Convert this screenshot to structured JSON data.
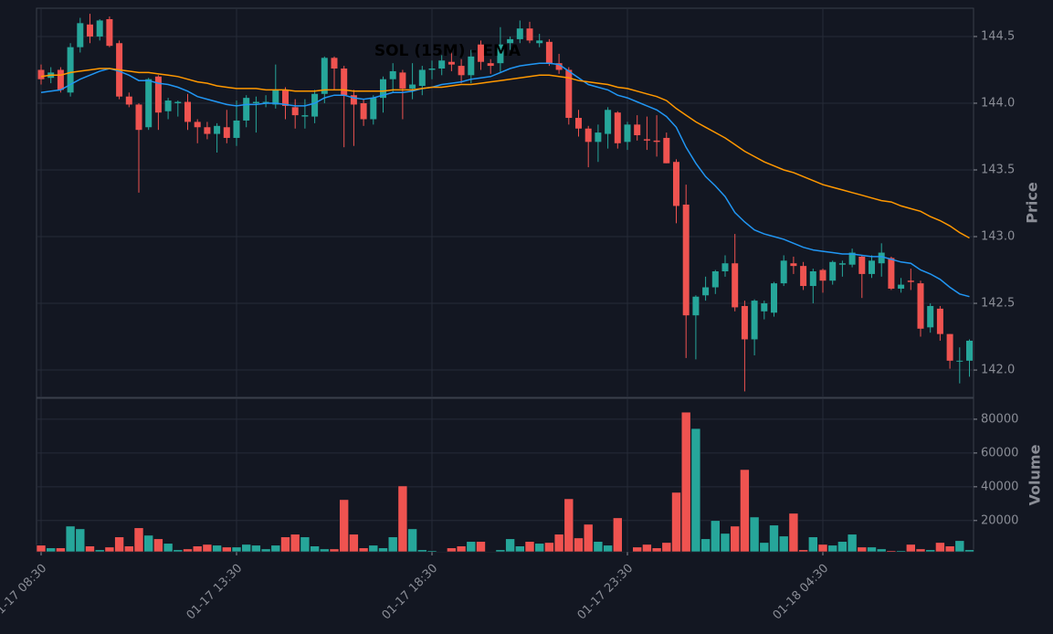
{
  "chart_data": {
    "type": "candlestick",
    "title": "SOL (15M) - EMA",
    "ylabel": "Price",
    "y2label": "Volume",
    "up_color": "#26a69a",
    "down_color": "#ef5350",
    "grid": true,
    "open": [
      144.25,
      144.19,
      144.25,
      144.08,
      144.42,
      144.59,
      144.5,
      144.63,
      144.45,
      144.05,
      143.99,
      143.82,
      144.2,
      143.94,
      144.0,
      144.01,
      143.86,
      143.82,
      143.77,
      143.82,
      143.74,
      143.87,
      144.0,
      144.01,
      143.99,
      144.1,
      143.97,
      143.9,
      143.9,
      144.07,
      144.34,
      144.26,
      144.06,
      144.0,
      143.88,
      144.04,
      144.18,
      144.23,
      144.11,
      144.13,
      144.25,
      144.26,
      144.31,
      144.28,
      144.21,
      144.44,
      144.3,
      144.3,
      144.45,
      144.48,
      144.56,
      144.45,
      144.46,
      144.3,
      144.25,
      143.89,
      143.81,
      143.71,
      143.77,
      143.93,
      143.71,
      143.84,
      143.73,
      143.72,
      143.74,
      143.56,
      143.24,
      142.41,
      142.56,
      142.62,
      142.74,
      142.8,
      142.48,
      142.23,
      142.44,
      142.43,
      142.65,
      142.8,
      142.78,
      142.63,
      142.75,
      142.67,
      142.79,
      142.79,
      142.85,
      142.72,
      142.8,
      142.84,
      142.61,
      142.67,
      142.65,
      142.32,
      142.46,
      142.27,
      142.07,
      142.07
    ],
    "high": [
      144.29,
      144.27,
      144.27,
      144.45,
      144.64,
      144.67,
      144.63,
      144.65,
      144.47,
      144.08,
      144.0,
      144.19,
      144.21,
      144.04,
      144.02,
      144.07,
      143.88,
      143.86,
      143.85,
      143.95,
      144.02,
      144.06,
      144.05,
      144.06,
      144.29,
      144.12,
      144.03,
      144.03,
      144.1,
      144.35,
      144.35,
      144.28,
      144.1,
      144.03,
      144.06,
      144.2,
      144.3,
      144.25,
      144.3,
      144.28,
      144.32,
      144.36,
      144.4,
      144.33,
      144.4,
      144.47,
      144.33,
      144.57,
      144.5,
      144.62,
      144.61,
      144.52,
      144.48,
      144.37,
      144.27,
      143.95,
      143.83,
      143.84,
      143.97,
      143.94,
      143.86,
      143.91,
      143.9,
      143.91,
      143.78,
      143.58,
      143.39,
      142.56,
      142.7,
      142.75,
      142.86,
      143.02,
      142.52,
      142.53,
      142.52,
      142.66,
      142.86,
      142.85,
      142.81,
      142.76,
      142.76,
      142.82,
      142.82,
      142.91,
      142.86,
      142.86,
      142.95,
      142.85,
      142.69,
      142.76,
      142.67,
      142.5,
      142.48,
      142.27,
      142.17,
      142.23
    ],
    "low": [
      144.14,
      144.15,
      144.08,
      144.05,
      144.38,
      144.45,
      144.47,
      144.42,
      144.03,
      143.97,
      143.33,
      143.8,
      143.8,
      143.88,
      143.9,
      143.8,
      143.7,
      143.73,
      143.63,
      143.7,
      143.68,
      143.82,
      143.78,
      143.97,
      143.96,
      143.88,
      143.81,
      143.81,
      143.85,
      144.0,
      144.1,
      143.67,
      143.68,
      143.83,
      143.84,
      143.93,
      144.08,
      143.88,
      144.03,
      144.06,
      144.18,
      144.21,
      144.24,
      144.15,
      144.15,
      144.25,
      144.22,
      144.23,
      144.4,
      144.45,
      144.45,
      144.42,
      144.28,
      144.22,
      143.84,
      143.75,
      143.52,
      143.56,
      143.66,
      143.66,
      143.65,
      143.72,
      143.65,
      143.6,
      143.55,
      143.1,
      142.09,
      142.08,
      142.52,
      142.57,
      142.7,
      142.44,
      141.84,
      142.11,
      142.38,
      142.4,
      142.63,
      142.72,
      142.6,
      142.5,
      142.58,
      142.64,
      142.7,
      142.77,
      142.54,
      142.69,
      142.7,
      142.6,
      142.58,
      142.6,
      142.25,
      142.28,
      142.22,
      142.01,
      141.9,
      141.95
    ],
    "close": [
      144.18,
      144.23,
      144.1,
      144.42,
      144.6,
      144.5,
      144.62,
      144.43,
      144.05,
      143.99,
      143.8,
      144.18,
      143.93,
      144.02,
      144.01,
      143.86,
      143.82,
      143.77,
      143.83,
      143.74,
      143.87,
      144.04,
      144.01,
      144.01,
      144.1,
      143.98,
      143.91,
      143.91,
      144.07,
      144.34,
      144.26,
      144.06,
      143.99,
      143.88,
      144.04,
      144.18,
      144.24,
      144.11,
      144.14,
      144.25,
      144.26,
      144.32,
      144.29,
      144.21,
      144.35,
      144.31,
      144.28,
      144.44,
      144.48,
      144.56,
      144.47,
      144.47,
      144.3,
      144.25,
      143.89,
      143.81,
      143.71,
      143.78,
      143.95,
      143.7,
      143.84,
      143.76,
      143.72,
      143.71,
      143.55,
      143.23,
      142.41,
      142.55,
      142.62,
      142.74,
      142.8,
      142.47,
      142.23,
      142.52,
      142.5,
      142.65,
      142.82,
      142.78,
      142.63,
      142.74,
      142.67,
      142.81,
      142.8,
      142.88,
      142.72,
      142.82,
      142.88,
      142.61,
      142.64,
      142.66,
      142.31,
      142.48,
      142.27,
      142.07,
      142.07,
      142.22
    ],
    "volume": [
      5400,
      3800,
      3800,
      16700,
      15100,
      4900,
      2700,
      4300,
      10300,
      4900,
      15700,
      11300,
      9200,
      6500,
      2700,
      3200,
      4900,
      5900,
      5400,
      4300,
      4300,
      5900,
      5400,
      3200,
      5400,
      10300,
      11900,
      10300,
      4900,
      3200,
      3200,
      32400,
      11900,
      3800,
      5400,
      3800,
      10300,
      40500,
      15100,
      2700,
      2200,
      1800,
      3800,
      4900,
      7600,
      7600,
      1600,
      2700,
      9200,
      4900,
      7600,
      6500,
      7000,
      11900,
      32900,
      9700,
      17800,
      7600,
      5400,
      21600,
      1600,
      4300,
      5900,
      3800,
      7000,
      36700,
      84200,
      74500,
      9200,
      20000,
      12400,
      16700,
      50200,
      22100,
      7000,
      17300,
      10800,
      24300,
      2700,
      10300,
      5900,
      5400,
      7600,
      11900,
      4300,
      4300,
      3200,
      2200,
      2200,
      5900,
      3200,
      2700,
      7000,
      4900,
      8100,
      2700
    ],
    "series": [
      {
        "color": "#2196f3",
        "values": [
          144.08,
          144.09,
          144.1,
          144.14,
          144.18,
          144.21,
          144.24,
          144.26,
          144.24,
          144.21,
          144.17,
          144.17,
          144.15,
          144.14,
          144.12,
          144.09,
          144.05,
          144.03,
          144.01,
          143.99,
          143.98,
          143.99,
          143.99,
          144.0,
          144.0,
          143.99,
          143.98,
          143.98,
          144.0,
          144.04,
          144.06,
          144.06,
          144.04,
          144.03,
          144.04,
          144.06,
          144.08,
          144.08,
          144.09,
          144.11,
          144.12,
          144.14,
          144.15,
          144.16,
          144.18,
          144.19,
          144.2,
          144.23,
          144.26,
          144.28,
          144.29,
          144.3,
          144.3,
          144.29,
          144.24,
          144.19,
          144.14,
          144.12,
          144.1,
          144.06,
          144.04,
          144.01,
          143.98,
          143.95,
          143.9,
          143.82,
          143.67,
          143.55,
          143.45,
          143.38,
          143.3,
          143.18,
          143.11,
          143.05,
          143.02,
          143.0,
          142.98,
          142.95,
          142.92,
          142.9,
          142.89,
          142.88,
          142.87,
          142.87,
          142.86,
          142.85,
          142.85,
          142.83,
          142.81,
          142.8,
          142.75,
          142.72,
          142.68,
          142.62,
          142.57,
          142.55
        ]
      },
      {
        "color": "#ff9800",
        "values": [
          144.2,
          144.21,
          144.21,
          144.23,
          144.24,
          144.25,
          144.26,
          144.26,
          144.25,
          144.24,
          144.23,
          144.23,
          144.22,
          144.21,
          144.2,
          144.18,
          144.16,
          144.15,
          144.13,
          144.12,
          144.11,
          144.11,
          144.11,
          144.1,
          144.1,
          144.1,
          144.09,
          144.09,
          144.09,
          144.1,
          144.1,
          144.1,
          144.09,
          144.09,
          144.09,
          144.09,
          144.1,
          144.1,
          144.1,
          144.11,
          144.12,
          144.12,
          144.13,
          144.14,
          144.14,
          144.15,
          144.16,
          144.17,
          144.18,
          144.19,
          144.2,
          144.21,
          144.21,
          144.2,
          144.19,
          144.17,
          144.16,
          144.15,
          144.14,
          144.12,
          144.11,
          144.09,
          144.07,
          144.05,
          144.02,
          143.96,
          143.91,
          143.86,
          143.82,
          143.78,
          143.74,
          143.69,
          143.64,
          143.6,
          143.56,
          143.53,
          143.5,
          143.48,
          143.45,
          143.42,
          143.39,
          143.37,
          143.35,
          143.33,
          143.31,
          143.29,
          143.27,
          143.26,
          143.23,
          143.21,
          143.19,
          143.15,
          143.12,
          143.08,
          143.03,
          142.99
        ]
      }
    ],
    "xticks": [
      {
        "value": 0,
        "label": "01-17 08:30"
      },
      {
        "value": 20,
        "label": "01-17 13:30"
      },
      {
        "value": 40,
        "label": "01-17 18:30"
      },
      {
        "value": 60,
        "label": "01-17 23:30"
      },
      {
        "value": 80,
        "label": "01-18 04:30"
      }
    ],
    "ylim": [
      141.795,
      144.712
    ],
    "yticks": [
      {
        "value": 142.0,
        "label": "142.0"
      },
      {
        "value": 142.5,
        "label": "142.5"
      },
      {
        "value": 143.0,
        "label": "143.0"
      },
      {
        "value": 143.5,
        "label": "143.5"
      },
      {
        "value": 144.0,
        "label": "144.0"
      },
      {
        "value": 144.5,
        "label": "144.5"
      }
    ],
    "y2lim": [
      1500,
      92400
    ],
    "y2ticks": [
      20000,
      40000,
      60000,
      80000
    ]
  }
}
